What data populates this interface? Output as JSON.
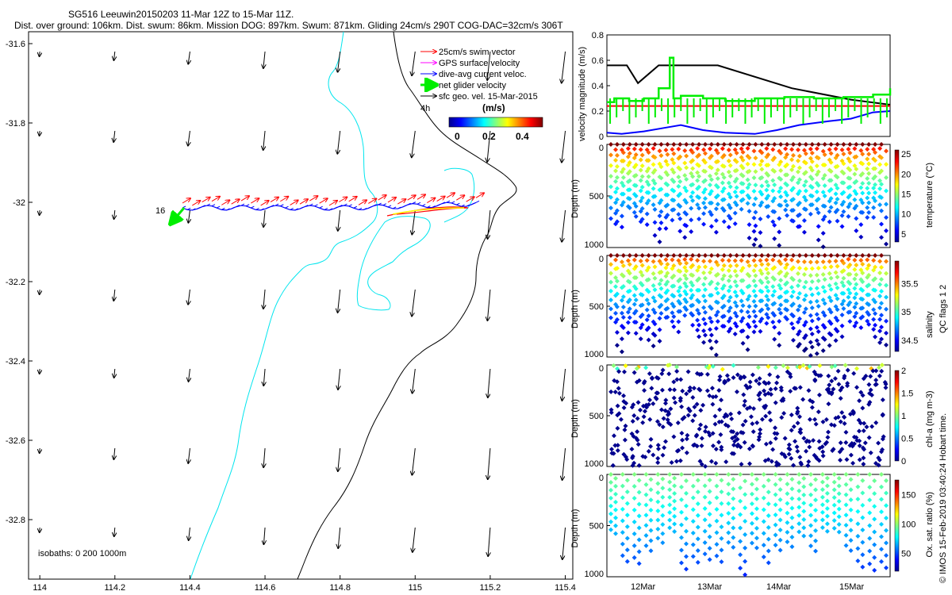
{
  "header": {
    "line1": "SG516 Leeuwin20150203 11-Mar 12Z to 15-Mar 11Z.",
    "line2": "Dist. over ground: 106km. Dist. swum: 86km. Mission DOG: 897km. Swum: 871km. Gliding 24cm/s 290T COG-DAC=32cm/s 306T"
  },
  "colors": {
    "coast": "#00e5ee",
    "isobath": "#000000",
    "swim": "#ff0000",
    "gps": "#ff00ff",
    "dac": "#0000ff",
    "net": "#00ee00",
    "geo": "#000000"
  },
  "map": {
    "xlim": [
      113.97,
      115.42
    ],
    "ylim": [
      -32.95,
      -31.57
    ],
    "xticks": [
      "114",
      "114.2",
      "114.4",
      "114.6",
      "114.8",
      "115",
      "115.2",
      "115.4"
    ],
    "yticks": [
      "-31.6",
      "-31.8",
      "-32",
      "-32.2",
      "-32.4",
      "-32.6",
      "-32.8"
    ],
    "track_label_start": "16",
    "track_label_end": "4h",
    "isobath_note": "isobaths: 0   200   1000m"
  },
  "legend": {
    "items": [
      "25cm/s swim vector",
      "GPS surface velocity",
      "dive-avg current veloc.",
      "net glider velocity",
      "sfc geo. vel. 15-Mar-2015"
    ],
    "colorbar_title": "(m/s)",
    "colorbar_ticks": [
      "0",
      "0.2",
      "0.4"
    ]
  },
  "chart_data": [
    {
      "type": "line",
      "title": "velocity magnitude",
      "ylabel": "velocity magnitude (m/s)",
      "ylim": [
        0,
        0.8
      ],
      "yticks": [
        "0",
        "0.2",
        "0.4",
        "0.6",
        "0.8"
      ],
      "xlabel": "",
      "series": [
        {
          "name": "sfc geo. vel.",
          "color": "#000000",
          "x": [
            0,
            0.27,
            0.42,
            0.7,
            1.5,
            2.5,
            3.3,
            3.83
          ],
          "y": [
            0.56,
            0.56,
            0.42,
            0.56,
            0.56,
            0.38,
            0.29,
            0.25
          ]
        },
        {
          "name": "swim",
          "color": "#ff0000",
          "x": [
            0,
            3.83
          ],
          "y": [
            0.24,
            0.24
          ]
        },
        {
          "name": "dive-avg current",
          "color": "#0000ff",
          "x": [
            0,
            0.2,
            0.5,
            0.8,
            1.0,
            1.3,
            1.6,
            2.0,
            2.3,
            2.6,
            3.0,
            3.3,
            3.6,
            3.83
          ],
          "y": [
            0.03,
            0.02,
            0.04,
            0.07,
            0.09,
            0.05,
            0.03,
            0.02,
            0.05,
            0.09,
            0.12,
            0.14,
            0.19,
            0.2
          ]
        },
        {
          "name": "net glider",
          "color": "#00ee00",
          "x": [
            0,
            0.1,
            0.3,
            0.5,
            0.7,
            0.85,
            0.9,
            1.0,
            1.3,
            1.6,
            2.0,
            2.4,
            2.8,
            3.2,
            3.6,
            3.83
          ],
          "y": [
            0.27,
            0.3,
            0.28,
            0.3,
            0.38,
            0.62,
            0.3,
            0.32,
            0.3,
            0.28,
            0.3,
            0.31,
            0.3,
            0.31,
            0.33,
            0.38
          ]
        }
      ]
    },
    {
      "type": "scatter",
      "ylabel": "Depth (m)",
      "clabel": "temperature (°C)",
      "ylim": [
        1000,
        0
      ],
      "cticks": [
        "5",
        "10",
        "15",
        "20",
        "25"
      ],
      "crange": [
        3,
        26
      ],
      "dives": 44
    },
    {
      "type": "scatter",
      "ylabel": "Depth (m)",
      "clabel": "salinity",
      "ylim": [
        1000,
        0
      ],
      "cticks": [
        "34.5",
        "35",
        "35.5"
      ],
      "crange": [
        34.3,
        35.9
      ],
      "dives": 44
    },
    {
      "type": "scatter",
      "ylabel": "Depth (m)",
      "clabel": "chl-a (mg m-3)",
      "ylim": [
        1000,
        0
      ],
      "cticks": [
        "0",
        "0.5",
        "1",
        "1.5",
        "2"
      ],
      "crange": [
        0,
        2
      ],
      "dives": 44
    },
    {
      "type": "scatter",
      "ylabel": "Depth (m)",
      "clabel": "Ox. sat. ratio (%)",
      "ylim": [
        1000,
        0
      ],
      "cticks": [
        "50",
        "100",
        "150"
      ],
      "crange": [
        20,
        175
      ],
      "dives": 24
    }
  ],
  "time_axis": {
    "ticks": [
      "12Mar",
      "13Mar",
      "14Mar",
      "15Mar"
    ],
    "depth_ticks": [
      "0",
      "500",
      "1000"
    ],
    "flags_label": "QC flags 1  2",
    "credit": "© IMOS 15-Feb-2019 03:40:24 Hobart time."
  }
}
